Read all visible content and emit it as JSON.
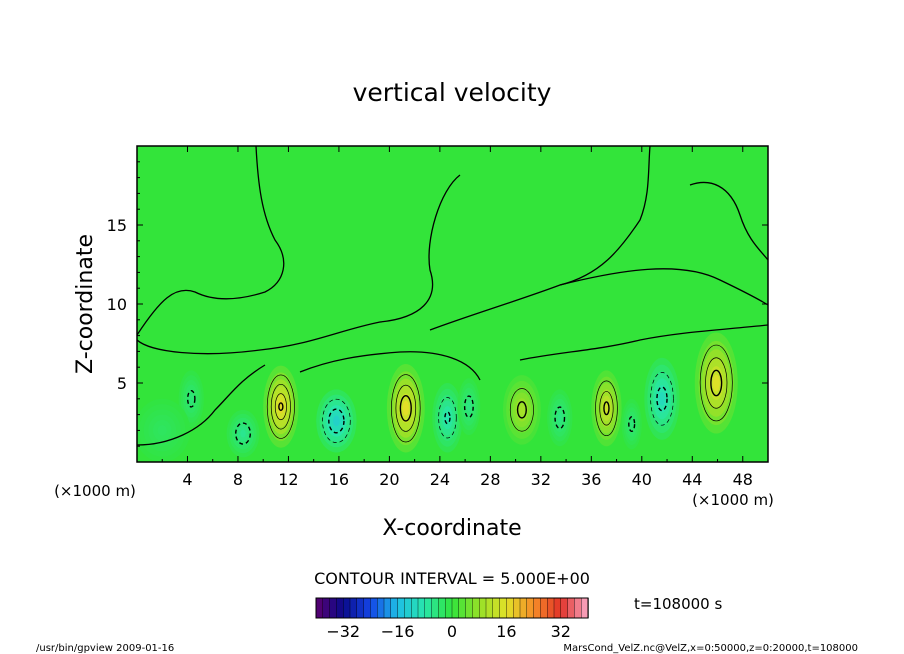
{
  "chart_data": {
    "type": "heatmap",
    "title": "vertical velocity",
    "xlabel": "X-coordinate",
    "ylabel": "Z-coordinate",
    "x_unit": "(×1000 m)",
    "x_unit_right": "(×1000 m)",
    "xlim": [
      0,
      50
    ],
    "ylim": [
      0,
      20
    ],
    "x_ticks": [
      4,
      8,
      12,
      16,
      20,
      24,
      28,
      32,
      36,
      40,
      44,
      48
    ],
    "y_ticks": [
      5,
      10,
      15
    ],
    "contour_interval": "CONTOUR INTERVAL = 5.000E+00",
    "time_label": "t=108000 s",
    "colorbar_ticks": [
      -32,
      -16,
      0,
      16,
      32
    ],
    "colorbar_range": [
      -40,
      40
    ],
    "cells": [
      {
        "x": 11.4,
        "z": 3.5,
        "w": 20,
        "sx": 1.4,
        "sz": 2.6
      },
      {
        "x": 21.3,
        "z": 3.4,
        "w": 19,
        "sx": 1.5,
        "sz": 2.8
      },
      {
        "x": 30.5,
        "z": 3.3,
        "w": 11,
        "sx": 1.5,
        "sz": 2.2
      },
      {
        "x": 37.2,
        "z": 3.4,
        "w": 16,
        "sx": 1.2,
        "sz": 2.4
      },
      {
        "x": 45.9,
        "z": 5.0,
        "w": 18,
        "sx": 1.7,
        "sz": 3.2
      },
      {
        "x": 15.8,
        "z": 2.6,
        "w": -14,
        "sx": 1.6,
        "sz": 2.0
      },
      {
        "x": 24.6,
        "z": 2.8,
        "w": -10,
        "sx": 1.2,
        "sz": 2.2
      },
      {
        "x": 26.3,
        "z": 3.5,
        "w": -6,
        "sx": 0.9,
        "sz": 1.8
      },
      {
        "x": 33.5,
        "z": 2.8,
        "w": -6,
        "sx": 1.0,
        "sz": 1.8
      },
      {
        "x": 41.6,
        "z": 4.0,
        "w": -12,
        "sx": 1.4,
        "sz": 2.6
      },
      {
        "x": 8.4,
        "z": 1.8,
        "w": -7,
        "sx": 1.3,
        "sz": 1.5
      },
      {
        "x": 4.3,
        "z": 4.0,
        "w": -5,
        "sx": 1.0,
        "sz": 1.8
      },
      {
        "x": 2.0,
        "z": 2.0,
        "w": -3,
        "sx": 2.2,
        "sz": 2.0
      },
      {
        "x": 39.2,
        "z": 2.4,
        "w": -5,
        "sx": 0.8,
        "sz": 1.6
      }
    ]
  },
  "footer": {
    "left": "/usr/bin/gpview   2009-01-16",
    "right": "MarsCond_VelZ.nc@VelZ,x=0:50000,z=0:20000,t=108000"
  }
}
